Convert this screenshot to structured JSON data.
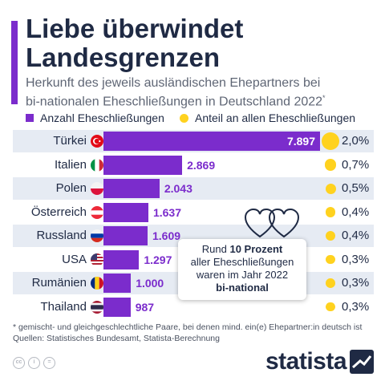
{
  "title": "Liebe überwindet\nLandesgrenzen",
  "subtitle": "Herkunft des jeweils ausländischen Ehepartners bei\nbi-nationalen Eheschließungen in Deutschland 2022",
  "subtitle_marker": "*",
  "legend": {
    "count_label": "Anzahl Eheschließungen",
    "share_label": "Anteil an allen Eheschließungen"
  },
  "colors": {
    "accent": "#7b2ccc",
    "dot": "#ffd21f",
    "text": "#1f2a44",
    "row_shade": "#e6ebf3"
  },
  "chart_data": {
    "type": "bar",
    "orientation": "horizontal",
    "categories": [
      "Türkei",
      "Italien",
      "Polen",
      "Österreich",
      "Russland",
      "USA",
      "Rumänien",
      "Thailand"
    ],
    "series": [
      {
        "name": "Anzahl Eheschließungen",
        "values": [
          7897,
          2869,
          2043,
          1637,
          1609,
          1297,
          1000,
          987
        ]
      },
      {
        "name": "Anteil an allen Eheschließungen",
        "values": [
          2.0,
          0.7,
          0.5,
          0.4,
          0.4,
          0.3,
          0.3,
          0.3
        ]
      }
    ],
    "value_labels": [
      "7.897",
      "2.869",
      "2.043",
      "1.637",
      "1.609",
      "1.297",
      "1.000",
      "987"
    ],
    "share_labels": [
      "2,0%",
      "0,7%",
      "0,5%",
      "0,4%",
      "0,4%",
      "0,3%",
      "0,3%",
      "0,3%"
    ],
    "flags": [
      "flag-turkey-icon",
      "flag-italy-icon",
      "flag-poland-icon",
      "flag-austria-icon",
      "flag-russia-icon",
      "flag-usa-icon",
      "flag-romania-icon",
      "flag-thailand-icon"
    ],
    "xlim": [
      0,
      7897
    ]
  },
  "callout": {
    "line1_pre": "Rund ",
    "line1_bold": "10 Prozent",
    "line2": "aller Eheschließungen",
    "line3": "waren im Jahr 2022",
    "line4_bold": "bi-national"
  },
  "footnote": "* gemischt- und gleichgeschlechtliche Paare, bei denen mind. ein(e) Ehepartner:in deutsch ist",
  "sources": "Quellen: Statistisches Bundesamt, Statista-Berechnung",
  "license_icons": [
    "cc-icon",
    "by-icon",
    "equals-icon"
  ],
  "brand": "statista"
}
